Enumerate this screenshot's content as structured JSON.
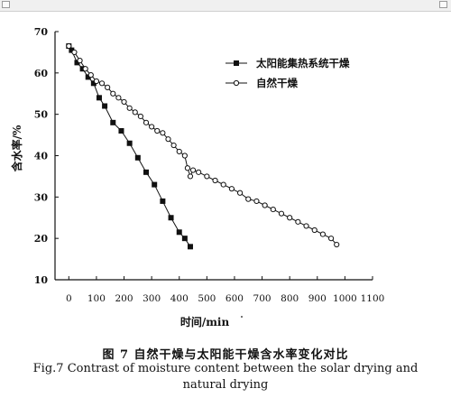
{
  "window": {
    "colors": {
      "titlebar": "#f0f0f0"
    }
  },
  "chart_data": {
    "type": "line",
    "xlabel": "时间/min",
    "ylabel": "含水率/%",
    "xlim": [
      -50,
      1100
    ],
    "ylim": [
      10,
      70
    ],
    "x_ticks": [
      0,
      100,
      200,
      300,
      400,
      500,
      600,
      700,
      800,
      900,
      1000,
      1100
    ],
    "y_ticks": [
      10,
      20,
      30,
      40,
      50,
      60,
      70
    ],
    "grid": false,
    "legend_position": "top-right",
    "series": [
      {
        "name": "太阳能集热系统干燥",
        "marker": "filled-square",
        "color": "#111111",
        "x": [
          0,
          10,
          30,
          50,
          70,
          90,
          110,
          130,
          160,
          190,
          220,
          250,
          280,
          310,
          340,
          370,
          400,
          420,
          440
        ],
        "y": [
          66.5,
          65.5,
          62.5,
          61,
          59,
          57.5,
          54,
          52,
          48,
          46,
          43,
          39.5,
          36,
          33,
          29,
          25,
          21.5,
          20,
          18
        ]
      },
      {
        "name": "自然干燥",
        "marker": "open-circle",
        "color": "#111111",
        "x": [
          0,
          20,
          40,
          60,
          80,
          100,
          120,
          140,
          160,
          180,
          200,
          220,
          240,
          260,
          280,
          300,
          320,
          340,
          360,
          380,
          400,
          420,
          430,
          440,
          450,
          470,
          500,
          530,
          560,
          590,
          620,
          650,
          680,
          710,
          740,
          770,
          800,
          830,
          860,
          890,
          920,
          950,
          970
        ],
        "y": [
          66.5,
          65,
          63,
          61,
          59.5,
          58,
          57.5,
          56.5,
          55,
          54,
          53,
          51.5,
          50.5,
          49.5,
          48,
          47,
          46,
          45.5,
          44,
          42.5,
          41,
          40,
          37,
          35,
          36.5,
          36,
          35,
          34,
          33,
          32,
          31,
          29.5,
          29,
          28,
          27,
          26,
          25,
          24,
          23,
          22,
          21,
          20,
          18.5
        ]
      }
    ]
  },
  "caption": {
    "zh": "图 7   自然干燥与太阳能干燥含水率变化对比",
    "en_line1": "Fig.7   Contrast of moisture content between the solar drying and",
    "en_line2": "natural drying"
  }
}
